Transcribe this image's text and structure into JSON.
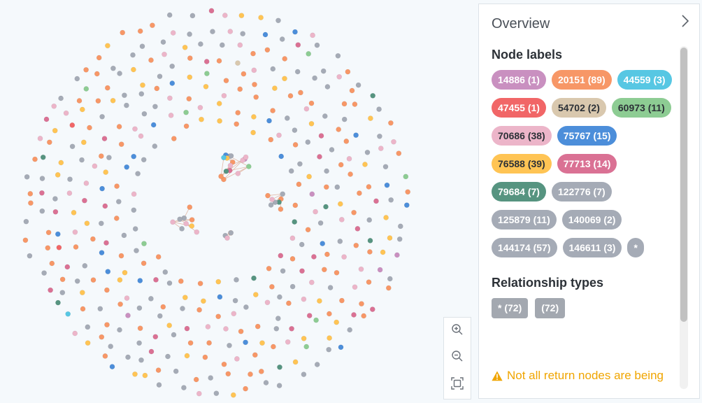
{
  "panel": {
    "title": "Overview",
    "node_labels_title": "Node labels",
    "relationship_types_title": "Relationship types",
    "warning": "Not all return nodes are being"
  },
  "node_labels": [
    {
      "text": "14886 (1)",
      "color": "#c990c0",
      "dark": false
    },
    {
      "text": "20151 (89)",
      "color": "#f79767",
      "dark": false
    },
    {
      "text": "44559 (3)",
      "color": "#57c7e3",
      "dark": false
    },
    {
      "text": "47455 (1)",
      "color": "#f16667",
      "dark": false
    },
    {
      "text": "54702 (2)",
      "color": "#d9c8ae",
      "dark": true
    },
    {
      "text": "60973 (11)",
      "color": "#8dcc93",
      "dark": true
    },
    {
      "text": "70686 (38)",
      "color": "#ecb5c9",
      "dark": true
    },
    {
      "text": "75767 (15)",
      "color": "#4c8eda",
      "dark": false
    },
    {
      "text": "76588 (39)",
      "color": "#ffc454",
      "dark": true
    },
    {
      "text": "77713 (14)",
      "color": "#da7194",
      "dark": false
    },
    {
      "text": "79684 (7)",
      "color": "#569480",
      "dark": false
    },
    {
      "text": "122776 (7)",
      "color": "#a5abb6",
      "dark": false
    },
    {
      "text": "125879 (11)",
      "color": "#a5abb6",
      "dark": false
    },
    {
      "text": "140069 (2)",
      "color": "#a5abb6",
      "dark": false
    },
    {
      "text": "144174 (57)",
      "color": "#a5abb6",
      "dark": false
    },
    {
      "text": "146611 (3)",
      "color": "#a5abb6",
      "dark": false
    },
    {
      "text": "*",
      "color": "#a5abb6",
      "dark": false
    }
  ],
  "relationship_types": [
    "* (72)",
    "(72)"
  ],
  "icons": {
    "zoom_in": "zoom-in-icon",
    "zoom_out": "zoom-out-icon",
    "fit": "fit-to-screen-icon",
    "collapse": "chevron-right-icon",
    "warning": "warning-icon"
  },
  "colors": {
    "background": "#f5f9fc",
    "warning": "#f0a500",
    "rel_pill": "#a3a8b0"
  }
}
